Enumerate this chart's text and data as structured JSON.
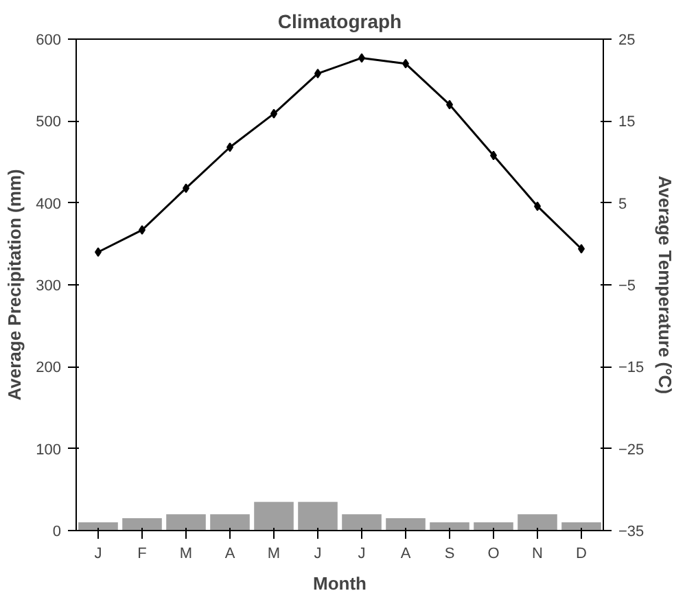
{
  "chart_data": {
    "type": "bar",
    "title": "Climatograph",
    "xlabel": "Month",
    "ylabel": "Average Precipitation (mm)",
    "y2label": "Average Temperature (°C)",
    "categories": [
      "J",
      "F",
      "M",
      "A",
      "M",
      "J",
      "J",
      "A",
      "S",
      "O",
      "N",
      "D"
    ],
    "series": [
      {
        "color": "#a0a0a0",
        "values": [
          10,
          15,
          20,
          20,
          35,
          35,
          20,
          15,
          10,
          10,
          20,
          10
        ]
      },
      {
        "type": "line",
        "axis": "y2",
        "color": "#000000",
        "marker": "diamond",
        "values": [
          -1,
          1.7,
          6.8,
          11.8,
          15.9,
          20.8,
          22.7,
          22,
          17,
          10.8,
          4.6,
          -0.6
        ]
      }
    ],
    "ylim": [
      0,
      600
    ],
    "yticks": [
      0,
      100,
      200,
      300,
      400,
      500,
      600
    ],
    "y2lim": [
      -35,
      25
    ],
    "y2ticks": [
      -35,
      -25,
      -15,
      -5,
      5,
      15,
      25
    ],
    "grid": false
  }
}
